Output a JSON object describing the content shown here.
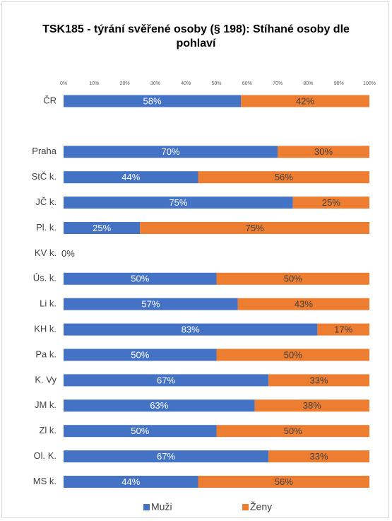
{
  "chart_data": {
    "type": "stacked-barh",
    "title": "TSK185 - týrání svěřené osoby (§ 198): Stíhané osoby dle pohlaví",
    "categories": [
      "ČR",
      null,
      "Praha",
      "StČ k.",
      "JČ k.",
      "Pl. k.",
      "KV k.",
      "Ús. k.",
      "Li k.",
      "KH k.",
      "Pa k.",
      "K. Vy",
      "JM k.",
      "Zl k.",
      "Ol. K.",
      "MS k."
    ],
    "series": [
      {
        "name": "Muži",
        "color": "#4472c4",
        "values": [
          58,
          null,
          70,
          44,
          75,
          25,
          0,
          50,
          57,
          83,
          50,
          67,
          62.5,
          50,
          67,
          44
        ],
        "value_labels": [
          "58%",
          null,
          "70%",
          "44%",
          "75%",
          "25%",
          "0%",
          "50%",
          "57%",
          "83%",
          "50%",
          "67%",
          "63%",
          "50%",
          "67%",
          "44%"
        ]
      },
      {
        "name": "Ženy",
        "color": "#ed7d31",
        "values": [
          42,
          null,
          30,
          56,
          25,
          75,
          null,
          50,
          43,
          17,
          50,
          33,
          37.5,
          50,
          33,
          56
        ],
        "value_labels": [
          "42%",
          null,
          "30%",
          "56%",
          "25%",
          "75%",
          null,
          "50%",
          "43%",
          "17%",
          "50%",
          "33%",
          "38%",
          "50%",
          "33%",
          "56%"
        ]
      }
    ],
    "xlim": [
      0,
      100
    ],
    "xticks": [
      {
        "value": 0,
        "label": "0%"
      },
      {
        "value": 10,
        "label": "10%"
      },
      {
        "value": 20,
        "label": "20%"
      },
      {
        "value": 30,
        "label": "30%"
      },
      {
        "value": 40,
        "label": "40%"
      },
      {
        "value": 50,
        "label": "50%"
      },
      {
        "value": 60,
        "label": "60%"
      },
      {
        "value": 70,
        "label": "70%"
      },
      {
        "value": 80,
        "label": "80%"
      },
      {
        "value": 90,
        "label": "90%"
      },
      {
        "value": 100,
        "label": "100%"
      }
    ],
    "legend": "bottom"
  }
}
